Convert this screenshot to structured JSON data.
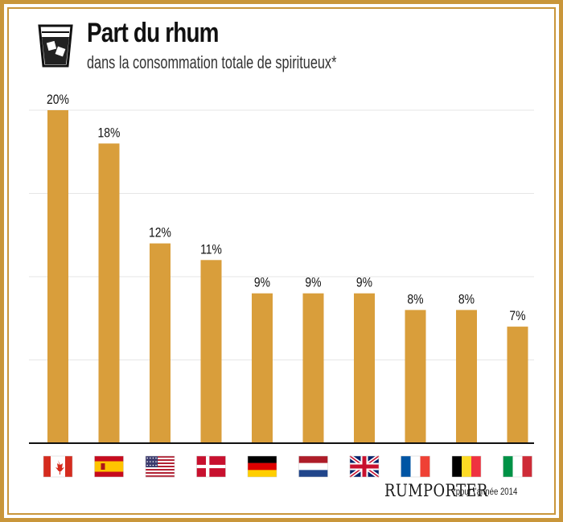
{
  "header": {
    "title": "Part du rhum",
    "subtitle": "dans la consommation totale de spiritueux*",
    "icon": "whisky-glass-icon"
  },
  "footer": {
    "brand": "RUMPORTER",
    "footnote": "*pour l'année 2014"
  },
  "colors": {
    "bar": "#d99e3b",
    "frame": "#c9963a",
    "grid": "#e6e6e6",
    "axis": "#111111"
  },
  "chart_data": {
    "type": "bar",
    "title": "Part du rhum",
    "subtitle": "dans la consommation totale de spiritueux*",
    "categories": [
      "Canada",
      "Espagne",
      "États-Unis",
      "Danemark",
      "Allemagne",
      "Pays-Bas",
      "Royaume-Uni",
      "France",
      "Belgique",
      "Italie"
    ],
    "category_icons": [
      "flag-canada",
      "flag-spain",
      "flag-usa",
      "flag-denmark",
      "flag-germany",
      "flag-netherlands",
      "flag-uk",
      "flag-france",
      "flag-belgium",
      "flag-italy"
    ],
    "values": [
      20,
      18,
      12,
      11,
      9,
      9,
      9,
      8,
      8,
      7
    ],
    "value_labels": [
      "20%",
      "18%",
      "12%",
      "11%",
      "9%",
      "9%",
      "9%",
      "8%",
      "8%",
      "7%"
    ],
    "unit": "%",
    "ylim": [
      0,
      20
    ],
    "grid": true,
    "legend": "none"
  }
}
